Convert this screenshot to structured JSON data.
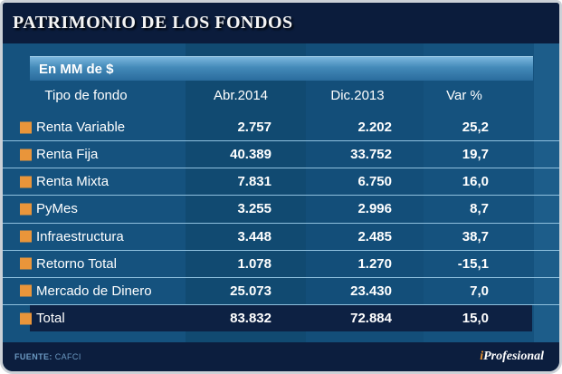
{
  "header": {
    "title": "PATRIMONIO DE LOS FONDOS"
  },
  "subheader": {
    "label": "En MM de $"
  },
  "table": {
    "columns": [
      "Tipo de fondo",
      "Abr.2014",
      "Dic.2013",
      "Var %"
    ],
    "rows": [
      {
        "label": "Renta Variable",
        "abr2014": "2.757",
        "dic2013": "2.202",
        "var": "25,2"
      },
      {
        "label": "Renta Fija",
        "abr2014": "40.389",
        "dic2013": "33.752",
        "var": "19,7"
      },
      {
        "label": "Renta Mixta",
        "abr2014": "7.831",
        "dic2013": "6.750",
        "var": "16,0"
      },
      {
        "label": "PyMes",
        "abr2014": "3.255",
        "dic2013": "2.996",
        "var": "8,7"
      },
      {
        "label": "Infraestructura",
        "abr2014": "3.448",
        "dic2013": "2.485",
        "var": "38,7"
      },
      {
        "label": "Retorno Total",
        "abr2014": "1.078",
        "dic2013": "1.270",
        "var": "-15,1"
      },
      {
        "label": "Mercado de Dinero",
        "abr2014": "25.073",
        "dic2013": "23.430",
        "var": "7,0"
      }
    ],
    "total": {
      "label": "Total",
      "abr2014": "83.832",
      "dic2013": "72.884",
      "var": "15,0"
    }
  },
  "footer": {
    "source_label": "FUENTE:",
    "source_value": "CAFCI",
    "brand_i": "i",
    "brand_rest": "Profesional"
  },
  "colors": {
    "title_band": "#0b1c3c",
    "body_blue": "#15527e",
    "stripe_dark": "#114a71",
    "stripe_light": "#1d5d8a",
    "subheader_bar_top": "#7ab6dd",
    "subheader_bar_bottom": "#2a6c9d",
    "separator": "#8fc0de",
    "bullet_orange": "#e9953a",
    "total_band": "#0d2143",
    "footer_band": "#0c1e3e",
    "source_text": "#6c9ac2",
    "brand_i_orange": "#e79232"
  },
  "chart_data": {
    "type": "table",
    "title": "PATRIMONIO DE LOS FONDOS",
    "subtitle": "En MM de $",
    "columns": [
      "Tipo de fondo",
      "Abr.2014",
      "Dic.2013",
      "Var %"
    ],
    "rows": [
      [
        "Renta Variable",
        2757,
        2202,
        25.2
      ],
      [
        "Renta Fija",
        40389,
        33752,
        19.7
      ],
      [
        "Renta Mixta",
        7831,
        6750,
        16.0
      ],
      [
        "PyMes",
        3255,
        2996,
        8.7
      ],
      [
        "Infraestructura",
        3448,
        2485,
        38.7
      ],
      [
        "Retorno Total",
        1078,
        1270,
        -15.1
      ],
      [
        "Mercado de Dinero",
        25073,
        23430,
        7.0
      ],
      [
        "Total",
        83832,
        72884,
        15.0
      ]
    ],
    "units": "MM de $ (Var en %)",
    "source": "CAFCI",
    "brand": "iProfesional"
  }
}
